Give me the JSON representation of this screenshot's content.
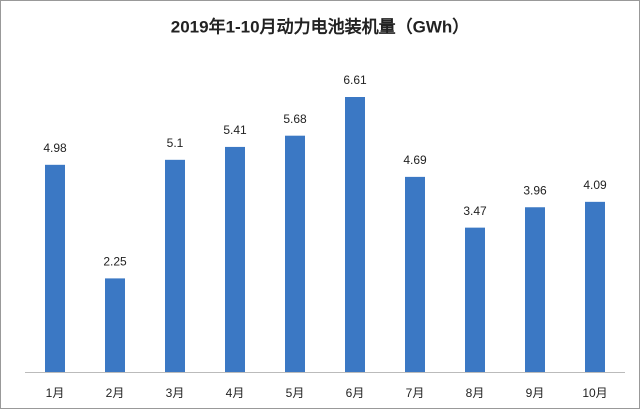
{
  "chart_data": {
    "type": "bar",
    "title": "2019年1-10月动力电池装机量（GWh）",
    "categories": [
      "1月",
      "2月",
      "3月",
      "4月",
      "5月",
      "6月",
      "7月",
      "8月",
      "9月",
      "10月"
    ],
    "values": [
      4.98,
      2.25,
      5.1,
      5.41,
      5.68,
      6.61,
      4.69,
      3.47,
      3.96,
      4.09
    ],
    "color": "#3b78c4"
  }
}
